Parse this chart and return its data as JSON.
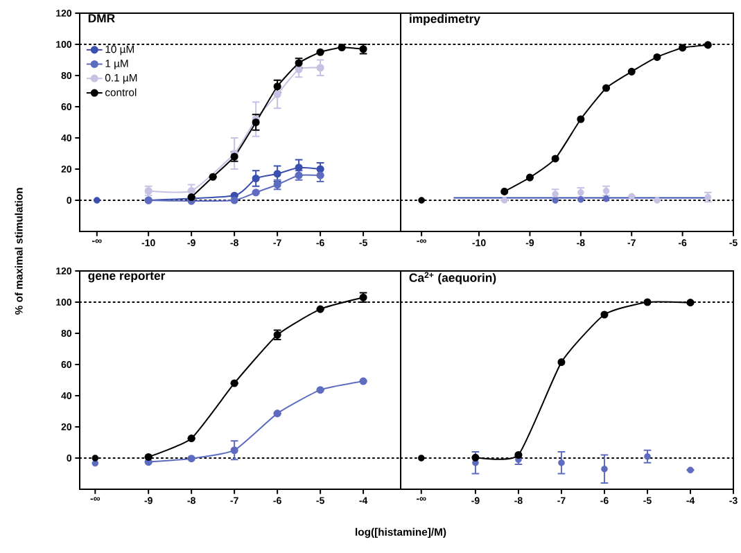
{
  "chart_data": [
    {
      "type": "line",
      "title": "DMR",
      "ylabel": "% of maximal stimulation",
      "marker": "circle",
      "legend": "top left",
      "xlim": [
        -11.6,
        -4.13
      ],
      "xticks": [
        {
          "value": -11.2,
          "label": "-∞"
        },
        -10,
        -9,
        -8,
        -7,
        -6,
        -5
      ],
      "ylim": [
        -20,
        120
      ],
      "yticks": [
        0,
        20,
        40,
        60,
        80,
        100,
        120
      ],
      "ref_lines": [
        {
          "axis": "y",
          "value": 0,
          "line_style": "dotted"
        },
        {
          "axis": "y",
          "value": 100,
          "line_style": "dotted"
        }
      ],
      "series": [
        {
          "name": "10 µM",
          "color": "#3b4fae",
          "x": [
            -10,
            -9,
            -8,
            -7.5,
            -7,
            -6.5,
            -6
          ],
          "values": [
            0,
            null,
            3,
            14,
            17,
            21,
            20
          ],
          "errors": [
            null,
            null,
            null,
            5,
            5,
            5,
            4
          ]
        },
        {
          "name": "1 µM",
          "color": "#5e6cc0",
          "x": [
            -10,
            -9,
            -8,
            -7.5,
            -7,
            -6.5,
            -6
          ],
          "values": [
            0,
            -0.5,
            0,
            5,
            10,
            16,
            16
          ],
          "errors": [
            null,
            null,
            null,
            null,
            3,
            3,
            4
          ]
        },
        {
          "name": "0.1 µM",
          "color": "#c5c2e3",
          "x": [
            -10,
            -9,
            -8,
            -7.5,
            -7,
            -6.5,
            -6
          ],
          "values": [
            6,
            6,
            30,
            52,
            68,
            84,
            85
          ],
          "errors": [
            3,
            4,
            10,
            11,
            9,
            5,
            5
          ]
        },
        {
          "name": "control",
          "color": "#000000",
          "x": [
            -9,
            -8.5,
            -8,
            -7.5,
            -7,
            -6.5,
            -6,
            -5.5,
            -5
          ],
          "values": [
            2,
            15,
            28,
            50,
            73,
            88,
            95,
            98,
            97
          ],
          "errors": [
            null,
            null,
            3,
            5,
            4,
            3,
            null,
            null,
            3
          ]
        },
        {
          "type": "scatter",
          "color": "#3b4fae",
          "x": [
            -11.2
          ],
          "values": [
            0
          ]
        }
      ]
    },
    {
      "type": "line",
      "title": "impedimetry",
      "marker": "circle",
      "tick_labels": "x",
      "xlim": [
        -11.54,
        -5
      ],
      "xticks": [
        {
          "value": -11.13,
          "label": "-∞"
        },
        -10,
        -9,
        -8,
        -7,
        -6,
        -5
      ],
      "ylim": [
        -20,
        120
      ],
      "yticks": [
        0,
        20,
        40,
        60,
        80,
        100,
        120
      ],
      "ref_lines": [
        {
          "axis": "y",
          "value": 0,
          "line_style": "dotted"
        },
        {
          "axis": "y",
          "value": 100,
          "line_style": "dotted"
        }
      ],
      "series": [
        {
          "type": "line",
          "marker": "none",
          "color": "#3b4fae",
          "x": [
            -10.5,
            -5.5
          ],
          "values": [
            1.5,
            1.5
          ]
        },
        {
          "type": "scatter",
          "color": "#5e6cc0",
          "x": [
            -8.5,
            -8,
            -7.5
          ],
          "values": [
            0,
            0.5,
            1
          ]
        },
        {
          "type": "scatter",
          "color": "#c5c2e3",
          "x": [
            -9.5,
            -8.5,
            -8,
            -7.5,
            -7,
            -6.5,
            -5.5
          ],
          "values": [
            0,
            4,
            5,
            6,
            2.5,
            0,
            2
          ],
          "errors": [
            null,
            3,
            3,
            3,
            null,
            null,
            3
          ]
        },
        {
          "color": "#000000",
          "x": [
            -9.5,
            -9,
            -8.5,
            -8,
            -7.5,
            -7,
            -6.5,
            -6,
            -5.5
          ],
          "values": [
            5.6,
            14.6,
            26.7,
            52,
            72,
            82.5,
            91.8,
            97.8,
            99.6
          ]
        },
        {
          "type": "scatter",
          "color": "#000000",
          "x": [
            -11.13
          ],
          "values": [
            0
          ]
        }
      ]
    },
    {
      "type": "line",
      "title": "gene reporter",
      "xlabel": "log([histamine]/M)",
      "marker": "circle",
      "xlim": [
        -10.6,
        -3.13
      ],
      "xticks": [
        {
          "value": -10.24,
          "label": "-∞"
        },
        -9,
        -8,
        -7,
        -6,
        -5,
        -4
      ],
      "ylim": [
        -20,
        120
      ],
      "yticks": [
        0,
        20,
        40,
        60,
        80,
        100,
        120
      ],
      "ref_lines": [
        {
          "axis": "y",
          "value": 0,
          "line_style": "dotted"
        },
        {
          "axis": "y",
          "value": 100,
          "line_style": "dotted"
        }
      ],
      "series": [
        {
          "color": "#5e6cc0",
          "x": [
            -9,
            -8,
            -7,
            -6,
            -5,
            -4
          ],
          "values": [
            -2.5,
            -0.3,
            5,
            28.6,
            43.7,
            49.3
          ],
          "errors": [
            null,
            null,
            6,
            null,
            null,
            null
          ]
        },
        {
          "color": "#000000",
          "x": [
            -9,
            -8,
            -7,
            -6,
            -5,
            -4
          ],
          "values": [
            0.7,
            12.6,
            48,
            79,
            95.5,
            103
          ],
          "errors": [
            null,
            null,
            null,
            3,
            null,
            3
          ]
        },
        {
          "type": "scatter",
          "color": "#5e6cc0",
          "x": [
            -10.24
          ],
          "values": [
            -3.3
          ]
        },
        {
          "type": "scatter",
          "color": "#000000",
          "x": [
            -10.24
          ],
          "values": [
            0
          ]
        }
      ]
    },
    {
      "type": "line",
      "title": "Ca$^{2+}$ (aequorin)",
      "marker": "circle",
      "tick_labels": "x",
      "xlim": [
        -10.74,
        -3
      ],
      "xticks": [
        {
          "value": -10.26,
          "label": "-∞"
        },
        -9,
        -8,
        -7,
        -6,
        -5,
        -4,
        -3
      ],
      "ylim": [
        -20,
        120
      ],
      "yticks": [
        0,
        20,
        40,
        60,
        80,
        100,
        120
      ],
      "ref_lines": [
        {
          "axis": "y",
          "value": 0,
          "line_style": "dotted"
        },
        {
          "axis": "y",
          "value": 100,
          "line_style": "dotted"
        }
      ],
      "series": [
        {
          "type": "scatter",
          "color": "#5e6cc0",
          "x": [
            -9,
            -8,
            -7,
            -6,
            -5,
            -4
          ],
          "values": [
            -3,
            -1,
            -3,
            -7,
            1,
            -7.7
          ],
          "errors": [
            7,
            3,
            7,
            9,
            4,
            null
          ]
        },
        {
          "color": "#000000",
          "x": [
            -9,
            -8,
            -7,
            -6,
            -5,
            -4
          ],
          "values": [
            0.3,
            2,
            61.5,
            92,
            100,
            99.7
          ]
        },
        {
          "type": "scatter",
          "color": "#000000",
          "x": [
            -10.26
          ],
          "values": [
            0
          ]
        }
      ]
    }
  ]
}
